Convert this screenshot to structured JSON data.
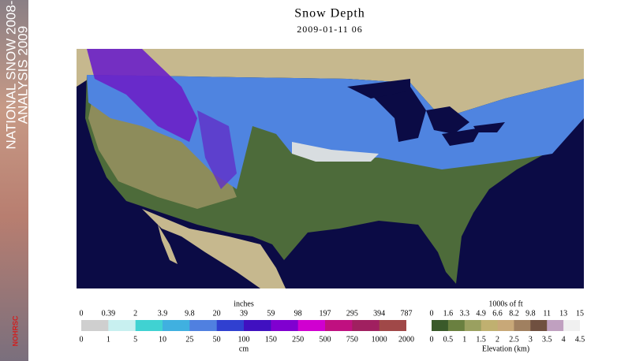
{
  "banner": {
    "line1": "NATIONAL SNOW 2008-",
    "line2": "ANALYSIS 2009",
    "logo": "NOHRSC"
  },
  "header": {
    "title": "Snow Depth",
    "subtitle": "2009-01-11 06"
  },
  "snow_legend": {
    "top_unit": "inches",
    "top_labels": [
      "0",
      "0.39",
      "2",
      "3.9",
      "9.8",
      "20",
      "39",
      "59",
      "98",
      "197",
      "295",
      "394",
      "787"
    ],
    "bottom_labels": [
      "0",
      "1",
      "5",
      "10",
      "25",
      "50",
      "100",
      "150",
      "250",
      "500",
      "750",
      "1000",
      "2000"
    ],
    "bottom_unit": "cm"
  },
  "elevation_legend": {
    "top_unit": "1000s of ft",
    "top_labels": [
      "0",
      "1.6",
      "3.3",
      "4.9",
      "6.6",
      "8.2",
      "9.8",
      "11",
      "13",
      "15"
    ],
    "bottom_labels": [
      "0",
      "0.5",
      "1",
      "1.5",
      "2",
      "2.5",
      "3",
      "3.5",
      "4",
      "4.5"
    ],
    "bottom_unit": "Elevation (km)"
  }
}
